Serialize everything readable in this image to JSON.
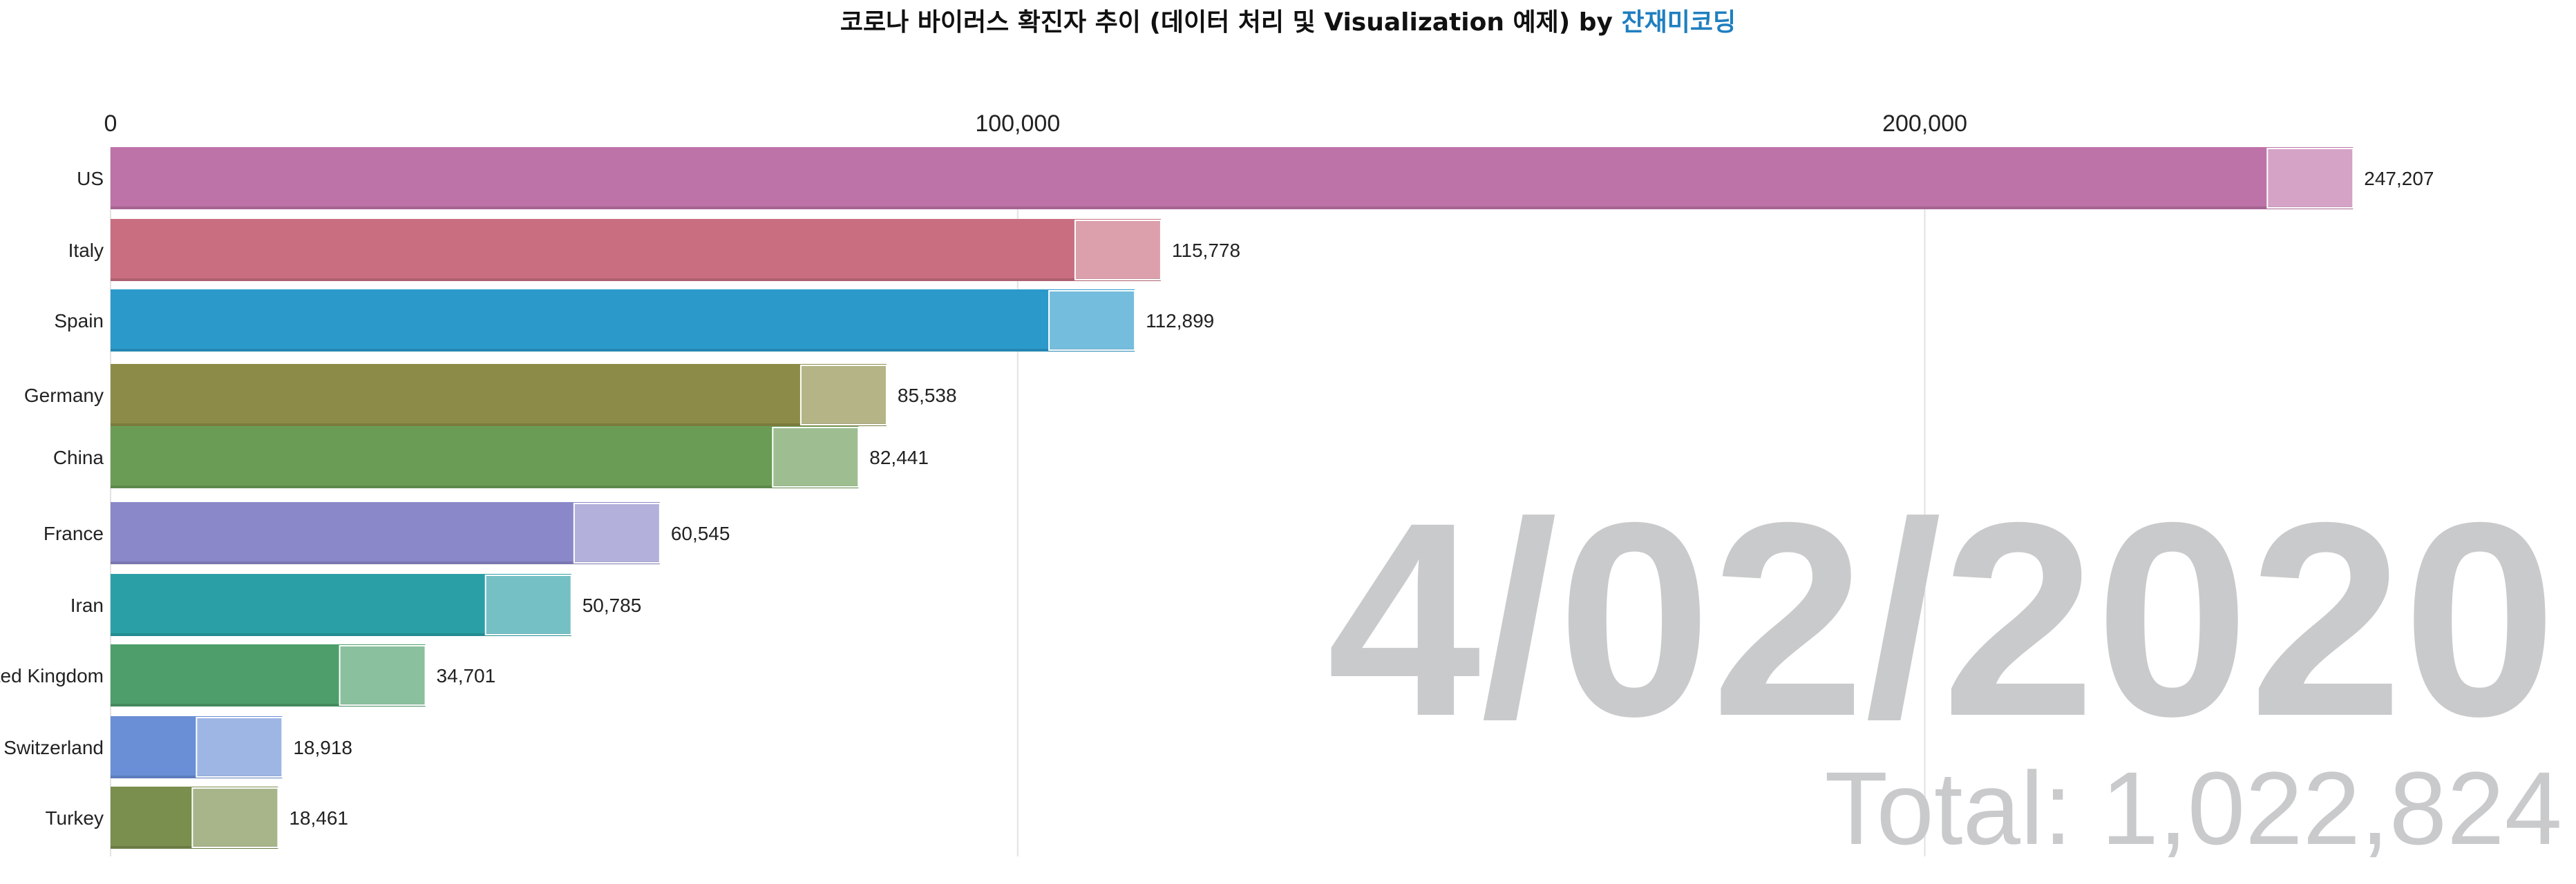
{
  "chart_data": {
    "type": "bar",
    "orientation": "horizontal",
    "title": "코로나 바이러스 확진자 추이 (데이터 처리 및 Visualization 예제) by ",
    "title_link": "잔재미코딩",
    "categories": [
      "US",
      "Italy",
      "Spain",
      "Germany",
      "China",
      "France",
      "Iran",
      "United Kingdom",
      "Switzerland",
      "Turkey"
    ],
    "values": [
      247207,
      115778,
      112899,
      85538,
      82441,
      60545,
      50785,
      34701,
      18918,
      18461
    ],
    "value_labels": [
      "247,207",
      "115,778",
      "112,899",
      "85,538",
      "82,441",
      "60,545",
      "50,785",
      "34,701",
      "18,918",
      "18,461"
    ],
    "colors": [
      "#bd72a8",
      "#c86e80",
      "#2b9acb",
      "#8c8c48",
      "#6a9c56",
      "#8a88c8",
      "#2a9fa6",
      "#4d9e6a",
      "#6a8fd6",
      "#7a8e4e"
    ],
    "xticks": [
      0,
      100000,
      200000
    ],
    "xtick_labels": [
      "0",
      "100,000",
      "200,000"
    ],
    "xlim": [
      0,
      266000
    ],
    "xaxis_position": "top",
    "grid": true,
    "date": "4/02/2020",
    "total": "Total: 1,022,824"
  }
}
